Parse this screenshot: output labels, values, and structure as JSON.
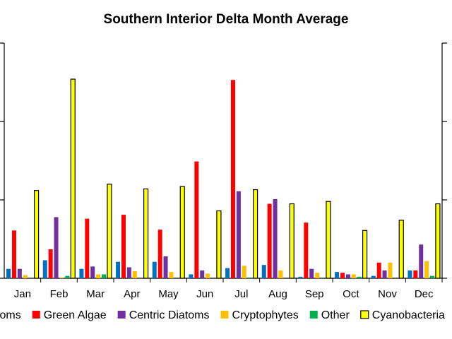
{
  "chart_data": {
    "type": "bar",
    "title": "Southern Interior Delta Month Average",
    "xlabel": "",
    "ylabel": "",
    "ylim": [
      0,
      3
    ],
    "grid": false,
    "legend_position": "bottom",
    "categories": [
      "Jan",
      "Feb",
      "Mar",
      "Apr",
      "May",
      "Jun",
      "Jul",
      "Aug",
      "Sep",
      "Oct",
      "Nov",
      "Dec"
    ],
    "series": [
      {
        "name": "Pennate Diatoms",
        "color": "#0070C0",
        "outline": "none",
        "values": [
          0.12,
          0.23,
          0.12,
          0.21,
          0.21,
          0.05,
          0.13,
          0.17,
          0.02,
          0.08,
          0.03,
          0.1
        ]
      },
      {
        "name": "Green Algae",
        "color": "#FF0000",
        "outline": "none",
        "values": [
          0.61,
          0.37,
          0.76,
          0.81,
          0.62,
          1.49,
          2.53,
          0.95,
          0.71,
          0.07,
          0.2,
          0.1
        ]
      },
      {
        "name": "Centric Diatoms",
        "color": "#7030A0",
        "outline": "none",
        "values": [
          0.12,
          0.78,
          0.15,
          0.14,
          0.28,
          0.1,
          1.11,
          1.01,
          0.12,
          0.05,
          0.1,
          0.43
        ]
      },
      {
        "name": "Cryptophytes",
        "color": "#FFC000",
        "outline": "none",
        "values": [
          0.04,
          0.01,
          0.05,
          0.09,
          0.08,
          0.06,
          0.16,
          0.1,
          0.07,
          0.05,
          0.2,
          0.22
        ]
      },
      {
        "name": "Other",
        "color": "#00B050",
        "outline": "none",
        "values": [
          0.0,
          0.03,
          0.05,
          0.0,
          0.0,
          0.0,
          0.01,
          0.0,
          0.0,
          0.02,
          0.0,
          0.03
        ]
      },
      {
        "name": "Cyanobacteria",
        "color": "#FFFF00",
        "outline": "#000000",
        "values": [
          1.12,
          2.54,
          1.2,
          1.14,
          1.17,
          0.86,
          1.13,
          0.95,
          0.98,
          0.61,
          0.74,
          0.95
        ]
      }
    ]
  }
}
